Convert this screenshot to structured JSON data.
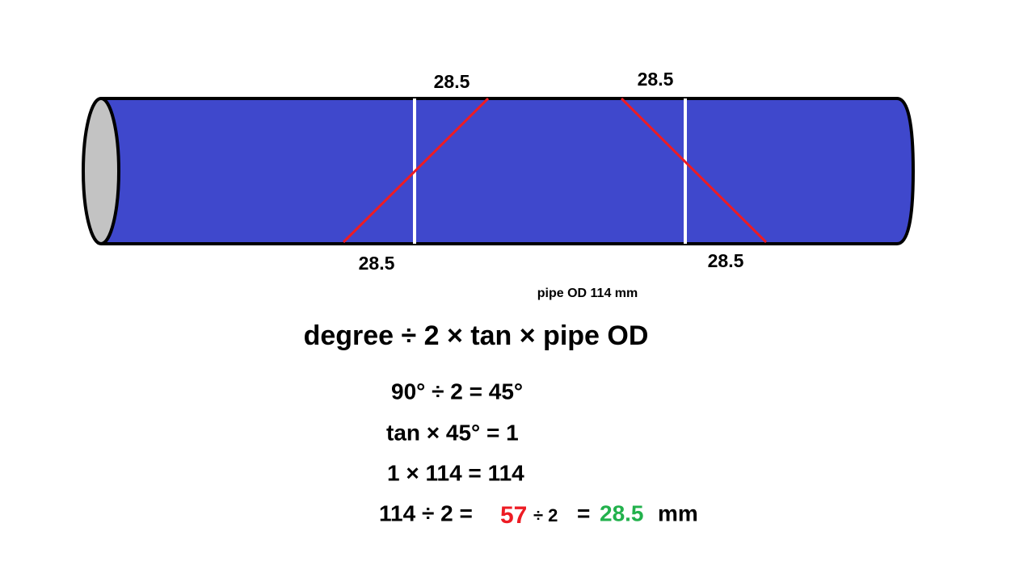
{
  "dimensions": {
    "top_left": "28.5",
    "top_right": "28.5",
    "bottom_left": "28.5",
    "bottom_right": "28.5"
  },
  "pipe_label": "pipe OD 114 mm",
  "formula": "degree ÷ 2 × tan × pipe OD",
  "steps": [
    "90° ÷ 2 = 45°",
    "tan × 45° = 1",
    "1 × 114 = 114"
  ],
  "final_step": {
    "start": "114 ÷ 2 =",
    "half": "57",
    "divide": "÷ 2",
    "equals": "=",
    "result": "28.5",
    "unit": "mm"
  }
}
